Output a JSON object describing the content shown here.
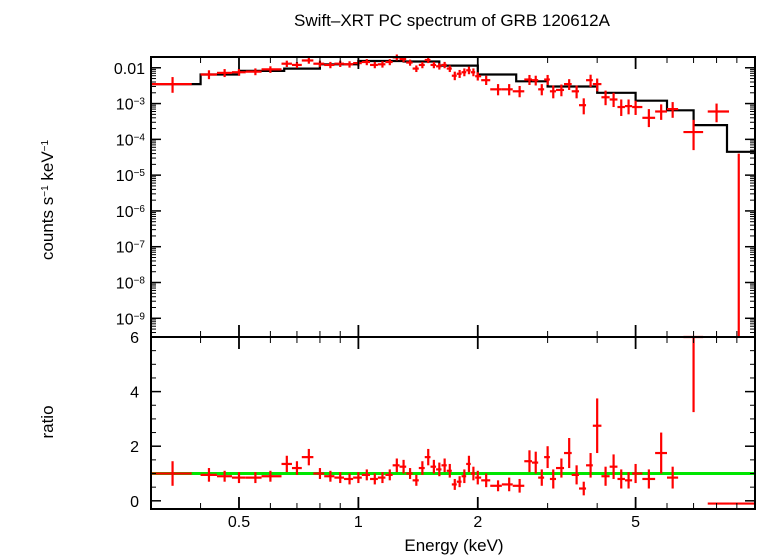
{
  "chart_data": {
    "type": "scatter",
    "title": "Swift–XRT PC spectrum of GRB 120612A",
    "xlabel": "Energy (keV)",
    "xscale": "log",
    "xlim": [
      0.3,
      10.0
    ],
    "x_ticks": [
      {
        "value": 0.5,
        "label": "0.5"
      },
      {
        "value": 1,
        "label": "1"
      },
      {
        "value": 2,
        "label": "2"
      },
      {
        "value": 5,
        "label": "5"
      }
    ],
    "colors": {
      "data": "#ff0000",
      "model": "#000000",
      "ratio_line": "#00e600",
      "axes": "#000000"
    },
    "panels": [
      {
        "name": "spectrum",
        "ylabel_base": "counts s",
        "ylabel_exp1": "−1",
        "ylabel_mid": " keV",
        "ylabel_exp2": "−1",
        "yscale": "log",
        "ylim": [
          3e-10,
          0.02
        ],
        "y_ticks": [
          {
            "value": 0.01,
            "label": "0.01"
          },
          {
            "value": 0.001,
            "base": "10",
            "exp": "−3"
          },
          {
            "value": 0.0001,
            "base": "10",
            "exp": "−4"
          },
          {
            "value": 1e-05,
            "base": "10",
            "exp": "−5"
          },
          {
            "value": 1e-06,
            "base": "10",
            "exp": "−6"
          },
          {
            "value": 1e-07,
            "base": "10",
            "exp": "−7"
          },
          {
            "value": 1e-08,
            "base": "10",
            "exp": "−8"
          },
          {
            "value": 1e-09,
            "base": "10",
            "exp": "−9"
          }
        ],
        "model_step": {
          "edges": [
            0.3,
            0.4,
            0.5,
            0.65,
            0.8,
            1.0,
            1.3,
            1.6,
            2.0,
            2.5,
            3.0,
            4.0,
            5.0,
            6.0,
            7.0,
            8.5,
            10.0
          ],
          "values": [
            0.0035,
            0.0065,
            0.0082,
            0.0095,
            0.0125,
            0.0155,
            0.015,
            0.0115,
            0.0065,
            0.0042,
            0.003,
            0.002,
            0.0012,
            0.00065,
            0.00025,
            4.5e-05
          ]
        },
        "series": [
          {
            "x": [
              0.34,
              0.42,
              0.46,
              0.5,
              0.55,
              0.6,
              0.66,
              0.7,
              0.75,
              0.8,
              0.85,
              0.9,
              0.95,
              1.0,
              1.05,
              1.1,
              1.15,
              1.2,
              1.25,
              1.3,
              1.35,
              1.4,
              1.45,
              1.5,
              1.55,
              1.6,
              1.65,
              1.7,
              1.75,
              1.8,
              1.85,
              1.9,
              1.95,
              2.0,
              2.1,
              2.25,
              2.4,
              2.55,
              2.7,
              2.8,
              2.9,
              3.0,
              3.1,
              3.25,
              3.4,
              3.55,
              3.7,
              3.85,
              4.0,
              4.2,
              4.4,
              4.6,
              4.8,
              5.0,
              5.4,
              5.8,
              6.2,
              7.0,
              8.0
            ],
            "xlo": [
              0.3,
              0.4,
              0.44,
              0.48,
              0.52,
              0.57,
              0.64,
              0.68,
              0.72,
              0.77,
              0.82,
              0.87,
              0.92,
              0.97,
              1.02,
              1.07,
              1.12,
              1.17,
              1.22,
              1.27,
              1.32,
              1.37,
              1.42,
              1.47,
              1.52,
              1.57,
              1.62,
              1.67,
              1.72,
              1.77,
              1.82,
              1.87,
              1.92,
              1.97,
              2.04,
              2.15,
              2.3,
              2.45,
              2.62,
              2.74,
              2.84,
              2.94,
              3.04,
              3.15,
              3.3,
              3.45,
              3.6,
              3.75,
              3.9,
              4.1,
              4.3,
              4.5,
              4.7,
              4.9,
              5.2,
              5.6,
              6.0,
              6.6,
              7.6
            ],
            "xhi": [
              0.38,
              0.44,
              0.48,
              0.52,
              0.57,
              0.64,
              0.68,
              0.72,
              0.77,
              0.82,
              0.87,
              0.92,
              0.97,
              1.02,
              1.07,
              1.12,
              1.17,
              1.22,
              1.27,
              1.32,
              1.37,
              1.42,
              1.47,
              1.52,
              1.57,
              1.62,
              1.67,
              1.72,
              1.77,
              1.82,
              1.87,
              1.92,
              1.97,
              2.04,
              2.15,
              2.3,
              2.45,
              2.62,
              2.74,
              2.84,
              2.94,
              3.04,
              3.15,
              3.3,
              3.45,
              3.6,
              3.75,
              3.9,
              4.1,
              4.3,
              4.5,
              4.7,
              4.9,
              5.2,
              5.6,
              6.0,
              6.4,
              7.4,
              8.6
            ],
            "y": [
              0.0035,
              0.0065,
              0.0072,
              0.0075,
              0.0078,
              0.009,
              0.013,
              0.012,
              0.016,
              0.013,
              0.012,
              0.013,
              0.0125,
              0.0135,
              0.0145,
              0.012,
              0.0125,
              0.0145,
              0.0195,
              0.0175,
              0.014,
              0.0095,
              0.012,
              0.0165,
              0.012,
              0.011,
              0.012,
              0.0095,
              0.006,
              0.0068,
              0.0075,
              0.0085,
              0.0075,
              0.0058,
              0.0045,
              0.0025,
              0.0025,
              0.0022,
              0.0047,
              0.0045,
              0.0025,
              0.0047,
              0.0022,
              0.0024,
              0.0035,
              0.0022,
              0.0009,
              0.0045,
              0.0035,
              0.0015,
              0.0013,
              0.0008,
              0.00085,
              0.0008,
              0.0004,
              0.0006,
              0.0007,
              0.00016,
              0.0006
            ],
            "ylo": [
              0.002,
              0.0048,
              0.0055,
              0.006,
              0.0062,
              0.0072,
              0.0105,
              0.0098,
              0.013,
              0.0106,
              0.0097,
              0.0105,
              0.0101,
              0.011,
              0.0118,
              0.0097,
              0.0101,
              0.0118,
              0.016,
              0.0143,
              0.0114,
              0.0076,
              0.0097,
              0.0135,
              0.0097,
              0.0089,
              0.0097,
              0.0076,
              0.0045,
              0.0052,
              0.0058,
              0.0066,
              0.0058,
              0.0044,
              0.0033,
              0.0017,
              0.0017,
              0.0015,
              0.0033,
              0.0032,
              0.0017,
              0.0033,
              0.0014,
              0.0016,
              0.0024,
              0.0014,
              0.0005,
              0.0029,
              0.0022,
              0.0009,
              0.0008,
              0.00045,
              0.0005,
              0.00048,
              0.00022,
              0.00035,
              0.0004,
              5e-05,
              0.0003
            ],
            "yhi": [
              0.0055,
              0.0085,
              0.0092,
              0.0093,
              0.0096,
              0.011,
              0.0158,
              0.0145,
              0.0195,
              0.0158,
              0.0146,
              0.0158,
              0.0152,
              0.0163,
              0.0175,
              0.0146,
              0.0152,
              0.0175,
              0.0235,
              0.021,
              0.0169,
              0.0116,
              0.0146,
              0.0198,
              0.0146,
              0.0134,
              0.0146,
              0.0116,
              0.0078,
              0.0087,
              0.0096,
              0.0108,
              0.0096,
              0.0075,
              0.006,
              0.0035,
              0.0035,
              0.0031,
              0.0063,
              0.006,
              0.0035,
              0.0063,
              0.0032,
              0.0034,
              0.0048,
              0.0032,
              0.0014,
              0.0064,
              0.005,
              0.0023,
              0.002,
              0.0013,
              0.0013,
              0.0012,
              0.0007,
              0.00095,
              0.0011,
              0.00035,
              0.001
            ]
          }
        ],
        "upper_limit_bin": {
          "x": 9.1,
          "xlo": 8.6,
          "xhi": 10.0,
          "y_top": 4e-05
        }
      },
      {
        "name": "ratio",
        "ylabel": "ratio",
        "yscale": "linear",
        "ylim": [
          -0.3,
          6.0
        ],
        "y_ticks": [
          {
            "value": 0,
            "label": "0"
          },
          {
            "value": 2,
            "label": "2"
          },
          {
            "value": 4,
            "label": "4"
          },
          {
            "value": 6,
            "label": "6"
          }
        ],
        "reference_line": 1.0,
        "series": [
          {
            "ratio": [
              1.0,
              0.95,
              0.9,
              0.85,
              0.85,
              0.9,
              1.35,
              1.2,
              1.6,
              1.0,
              0.9,
              0.85,
              0.8,
              0.85,
              0.95,
              0.8,
              0.85,
              0.95,
              1.3,
              1.25,
              1.0,
              0.75,
              1.2,
              1.6,
              1.25,
              1.15,
              1.3,
              1.1,
              0.6,
              0.7,
              0.9,
              1.35,
              1.0,
              0.85,
              0.75,
              0.55,
              0.6,
              0.55,
              1.45,
              1.4,
              0.85,
              1.6,
              0.8,
              1.2,
              1.75,
              0.95,
              0.45,
              1.3,
              2.75,
              0.9,
              1.25,
              0.8,
              0.75,
              1.0,
              0.8,
              1.75,
              0.85,
              6.0,
              -0.1
            ],
            "ratio_lo": [
              0.55,
              0.7,
              0.7,
              0.65,
              0.65,
              0.7,
              1.05,
              0.95,
              1.3,
              0.8,
              0.7,
              0.65,
              0.6,
              0.65,
              0.75,
              0.6,
              0.65,
              0.75,
              1.05,
              1.0,
              0.8,
              0.55,
              0.95,
              1.3,
              1.0,
              0.9,
              1.05,
              0.85,
              0.4,
              0.5,
              0.65,
              1.05,
              0.75,
              0.6,
              0.5,
              0.35,
              0.35,
              0.3,
              1.05,
              1.0,
              0.55,
              1.2,
              0.45,
              0.85,
              1.2,
              0.6,
              0.2,
              0.85,
              1.75,
              0.55,
              0.8,
              0.45,
              0.45,
              0.65,
              0.45,
              1.0,
              0.45,
              3.25,
              -0.1
            ],
            "ratio_hi": [
              1.45,
              1.2,
              1.1,
              1.05,
              1.05,
              1.1,
              1.65,
              1.45,
              1.9,
              1.2,
              1.1,
              1.05,
              1.0,
              1.05,
              1.15,
              1.0,
              1.05,
              1.15,
              1.55,
              1.5,
              1.2,
              0.95,
              1.45,
              1.9,
              1.5,
              1.4,
              1.55,
              1.35,
              0.8,
              0.9,
              1.15,
              1.65,
              1.25,
              1.1,
              1.0,
              0.75,
              0.85,
              0.8,
              1.85,
              1.8,
              1.15,
              2.0,
              1.15,
              1.55,
              2.3,
              1.3,
              0.7,
              1.75,
              3.75,
              1.25,
              1.7,
              1.15,
              1.05,
              1.35,
              1.15,
              2.5,
              1.25,
              6.0,
              -0.1
            ]
          }
        ]
      }
    ]
  }
}
